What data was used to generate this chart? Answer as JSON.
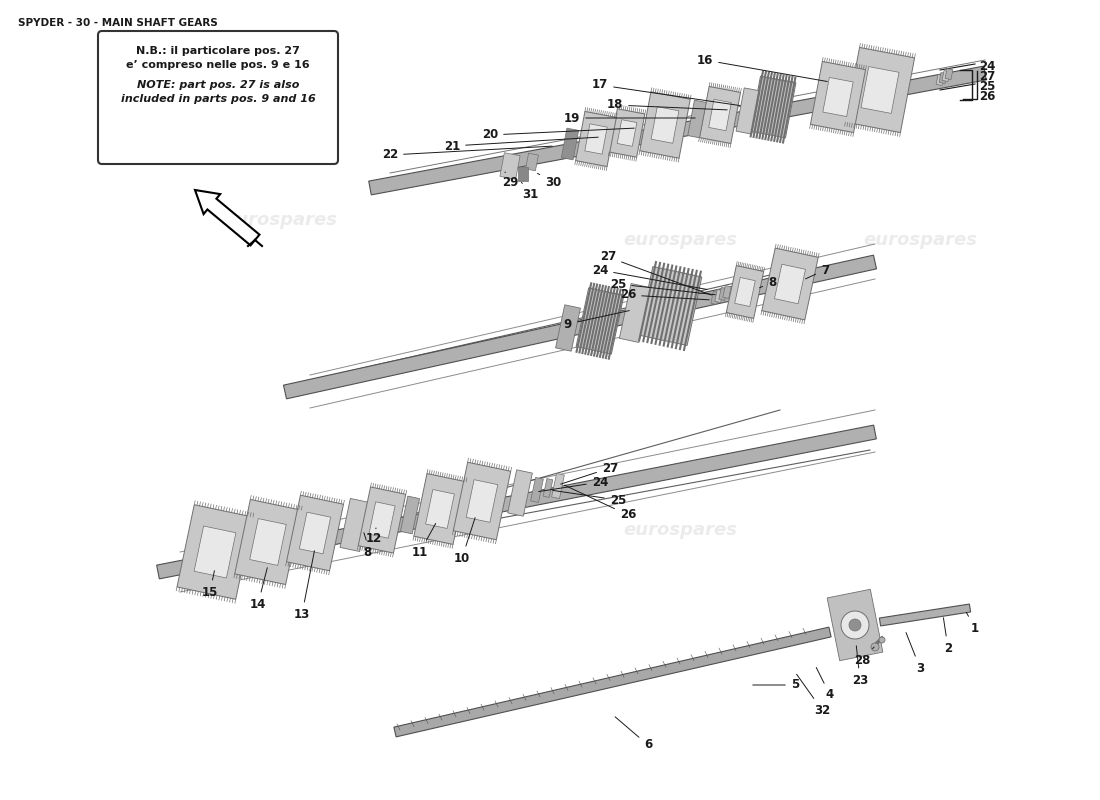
{
  "title": "SPYDER - 30 - MAIN SHAFT GEARS",
  "note_line1": "N.B.: il particolare pos. 27",
  "note_line2": "e’ compreso nelle pos. 9 e 16",
  "note_line3": "NOTE: part pos. 27 is also",
  "note_line4": "included in parts pos. 9 and 16",
  "bg_color": "#ffffff",
  "text_color": "#1a1a1a",
  "gear_fill": "#c8c8c8",
  "gear_dark": "#707070",
  "gear_light": "#e8e8e8",
  "shaft_fill": "#b0b0b0",
  "shaft_edge": "#505050",
  "wm_color": "#d8d8d8",
  "wm_alpha": 0.5,
  "title_fontsize": 7.5,
  "label_fontsize": 8.5,
  "note_fontsize": 8.0
}
